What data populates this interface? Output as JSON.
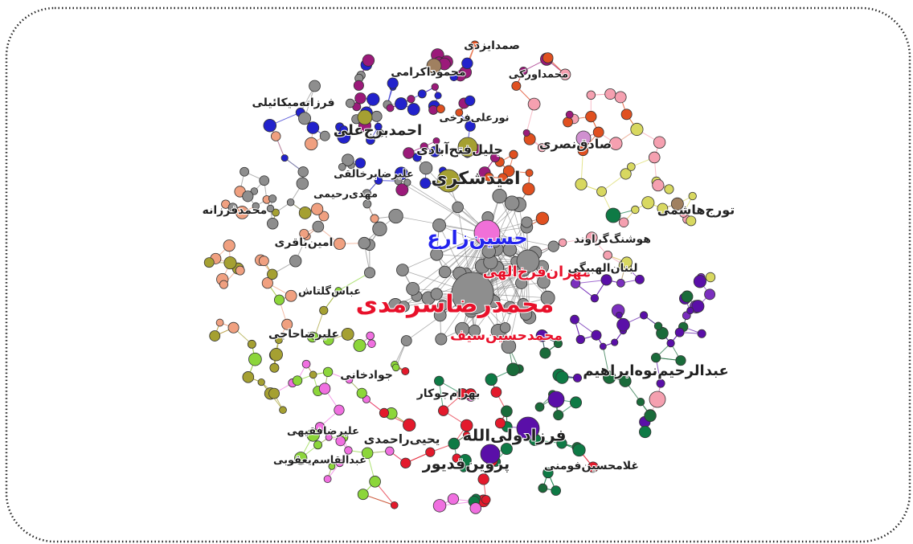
{
  "graph": {
    "labels": [
      "صمدایزدی",
      "محموداکرامی",
      "محمداورکی",
      "فرزانه‌میکائیلی",
      "نورعلی‌فرخی",
      "احمدبرج‌علی",
      "جلیل‌فتح‌آبادی",
      "صادق‌نصری",
      "علیرضابرخالقی",
      "امیدشکری",
      "مهدی‌رحیمی",
      "محمدفرزانه",
      "تورج‌هاشمی",
      "حسین‌زارع",
      "هوشنگ‌گراوند",
      "امین‌باقری",
      "مهران‌فرخ‌الهی",
      "لبنان‌الهبیگی",
      "عباس‌گلتاش",
      "محمدرضاسرمدی",
      "محمدحسین‌سیف",
      "علیرضاحاجی",
      "عبدالرحیم‌نوه‌ابراهیم",
      "جوادخانی",
      "بهرام‌جوکار",
      "فرزادولی‌الله",
      "علیرضافقیهی",
      "یحیی‌راحمدی",
      "پروین‌قدیور",
      "غلامحسین‌فومنی",
      "عبدالقاسم‌یعقوبی"
    ]
  }
}
